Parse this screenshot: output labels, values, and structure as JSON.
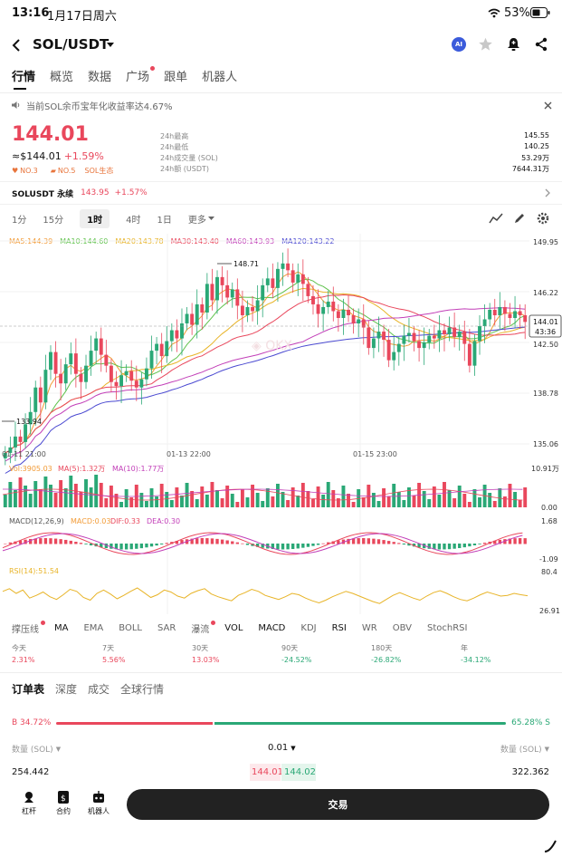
{
  "status": {
    "time": "13:16",
    "date": "1月17日周六",
    "battery": "53%"
  },
  "header": {
    "pair": "SOL/USDT",
    "ai_badge": "AI"
  },
  "tabs": [
    "行情",
    "概览",
    "数据",
    "广场",
    "跟单",
    "机器人"
  ],
  "notice": "当前SOL余币宝年化收益率达4.67%",
  "ticker": {
    "price": "144.01",
    "approx": "≈$144.01",
    "change": "+1.59%",
    "tags": [
      "NO.3",
      "NO.5",
      "SOL生态"
    ],
    "stats": [
      {
        "label": "24h最高",
        "value": "145.55"
      },
      {
        "label": "24h最低",
        "value": "140.25"
      },
      {
        "label": "24h成交量 (SOL)",
        "value": "53.29万"
      },
      {
        "label": "24h额 (USDT)",
        "value": "7644.31万"
      }
    ]
  },
  "perp": {
    "name": "SOLUSDT 永续",
    "price": "143.95",
    "change": "+1.57%"
  },
  "timeframes": [
    "1分",
    "15分",
    "1时",
    "4时",
    "1日",
    "更多"
  ],
  "chart_data": {
    "type": "candlestick",
    "ma_legend": [
      {
        "label": "MA5:144.39",
        "color": "#f29b37"
      },
      {
        "label": "MA10:144.60",
        "color": "#5fc24c"
      },
      {
        "label": "MA20:143.78",
        "color": "#e8b428"
      },
      {
        "label": "MA30:143.40",
        "color": "#e9475c"
      },
      {
        "label": "MA60:143.93",
        "color": "#c23fb8"
      },
      {
        "label": "MA120:143.22",
        "color": "#4b4ad1"
      }
    ],
    "y_ticks": [
      "149.95",
      "146.22",
      "142.50",
      "138.78",
      "135.06"
    ],
    "x_ticks": [
      "01-11 21:00",
      "01-13 22:00",
      "01-15 23:00"
    ],
    "high_marker": "148.71",
    "low_marker": "133.94",
    "last_price": "144.01",
    "countdown": "43:36",
    "vol_legend": [
      "Vol:3905.03",
      "MA(5):1.32万",
      "MA(10):1.77万"
    ],
    "vol_ticks": [
      "10.91万",
      "0.00"
    ],
    "macd_legend": [
      "MACD(12,26,9)",
      "MACD:0.03",
      "DIF:0.33",
      "DEA:0.30"
    ],
    "macd_ticks": [
      "1.68",
      "-1.09"
    ],
    "rsi_legend": "RSI(14):51.54",
    "rsi_ticks": [
      "80.4",
      "26.91"
    ],
    "closes": [
      134.4,
      134.8,
      135.6,
      135.2,
      136.5,
      137.4,
      139.2,
      138.1,
      140.5,
      141.8,
      140.2,
      139.5,
      140.9,
      141.7,
      140.2,
      139.6,
      140.8,
      141.9,
      142.8,
      141.6,
      140.8,
      139.6,
      139.3,
      140.1,
      140.4,
      139.7,
      139.2,
      139.8,
      140.6,
      141.9,
      142.4,
      141.5,
      142.6,
      143.4,
      142.8,
      143.9,
      144.6,
      143.8,
      145.3,
      144.7,
      146.8,
      145.6,
      147.3,
      146.7,
      145.8,
      146.4,
      145.2,
      144.5,
      145.1,
      144.8,
      145.6,
      146.7,
      147.2,
      146.5,
      147.9,
      148.3,
      147.8,
      146.9,
      147.5,
      146.8,
      145.9,
      145.3,
      144.6,
      145.1,
      145.5,
      144.8,
      144.3,
      144.9,
      144.5,
      143.9,
      144.2,
      143.6,
      142.1,
      142.8,
      143.3,
      142.7,
      141.2,
      141.8,
      142.4,
      143.0,
      143.2,
      142.6,
      142.1,
      142.5,
      143.0,
      142.8,
      143.4,
      143.1,
      143.6,
      142.9,
      143.3,
      142.4,
      140.8,
      142.6,
      143.7,
      144.2,
      144.9,
      144.5,
      145.1,
      144.6,
      144.3,
      144.8,
      144.5,
      144.01
    ],
    "rsi_values": [
      58,
      62,
      55,
      60,
      48,
      52,
      57,
      50,
      46,
      53,
      61,
      58,
      49,
      45,
      55,
      60,
      54,
      47,
      52,
      58,
      63,
      56,
      49,
      53,
      60,
      57,
      51,
      48,
      55,
      59,
      62,
      54,
      50,
      47,
      44,
      52,
      56,
      61,
      58,
      52,
      49,
      46,
      50,
      55,
      53,
      48,
      44,
      41,
      45,
      50,
      54,
      58,
      55,
      51,
      47,
      43,
      40,
      46,
      52,
      56,
      52,
      48,
      45,
      51,
      56,
      59,
      55,
      50,
      46,
      44,
      48,
      53,
      57,
      54,
      51,
      52,
      55,
      53,
      51.54
    ]
  },
  "indicator_tabs": [
    "撑压线",
    "MA",
    "EMA",
    "BOLL",
    "SAR",
    "瀑流",
    "VOL",
    "MACD",
    "KDJ",
    "RSI",
    "WR",
    "OBV",
    "StochRSI"
  ],
  "performance": [
    {
      "label": "今天",
      "value": "2.31%",
      "up": true
    },
    {
      "label": "7天",
      "value": "5.56%",
      "up": true
    },
    {
      "label": "30天",
      "value": "13.03%",
      "up": true
    },
    {
      "label": "90天",
      "value": "-24.52%",
      "up": false
    },
    {
      "label": "180天",
      "value": "-26.82%",
      "up": false
    },
    {
      "label": "年",
      "value": "-34.12%",
      "up": false
    }
  ],
  "orderbook": {
    "tabs": [
      "订单表",
      "深度",
      "成交",
      "全球行情"
    ],
    "buy_ratio": "B 34.72%",
    "sell_ratio": "65.28% S",
    "buy_fraction": 0.3472,
    "qty_left": "数量 (SOL)",
    "precision": "0.01",
    "qty_right": "数量 (SOL)",
    "bid_qty": "254.442",
    "bid_price": "144.01",
    "ask_price": "144.02",
    "ask_qty": "322.362"
  },
  "bottom": {
    "buttons": [
      "杠杆",
      "合约",
      "机器人"
    ],
    "trade": "交易"
  }
}
